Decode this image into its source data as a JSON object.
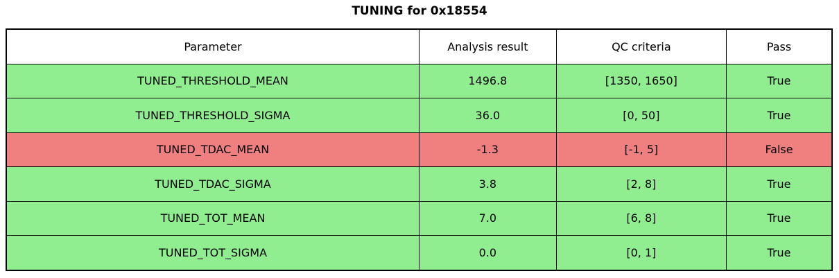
{
  "title": "TUNING for 0x18554",
  "colors": {
    "pass_row_bg": "#90EE90",
    "fail_row_bg": "#F08080",
    "header_bg": "#FFFFFF",
    "border": "#000000",
    "text": "#000000"
  },
  "table": {
    "headers": [
      "Parameter",
      "Analysis result",
      "QC criteria",
      "Pass"
    ],
    "rows": [
      {
        "parameter": "TUNED_THRESHOLD_MEAN",
        "result": "1496.8",
        "criteria": "[1350, 1650]",
        "pass": "True"
      },
      {
        "parameter": "TUNED_THRESHOLD_SIGMA",
        "result": "36.0",
        "criteria": "[0, 50]",
        "pass": "True"
      },
      {
        "parameter": "TUNED_TDAC_MEAN",
        "result": "-1.3",
        "criteria": "[-1, 5]",
        "pass": "False"
      },
      {
        "parameter": "TUNED_TDAC_SIGMA",
        "result": "3.8",
        "criteria": "[2, 8]",
        "pass": "True"
      },
      {
        "parameter": "TUNED_TOT_MEAN",
        "result": "7.0",
        "criteria": "[6, 8]",
        "pass": "True"
      },
      {
        "parameter": "TUNED_TOT_SIGMA",
        "result": "0.0",
        "criteria": "[0, 1]",
        "pass": "True"
      }
    ]
  },
  "chart_data": {
    "type": "table",
    "title": "TUNING for 0x18554",
    "columns": [
      "Parameter",
      "Analysis result",
      "QC criteria",
      "Pass"
    ],
    "rows": [
      [
        "TUNED_THRESHOLD_MEAN",
        "1496.8",
        "[1350, 1650]",
        "True"
      ],
      [
        "TUNED_THRESHOLD_SIGMA",
        "36.0",
        "[0, 50]",
        "True"
      ],
      [
        "TUNED_TDAC_MEAN",
        "-1.3",
        "[-1, 5]",
        "False"
      ],
      [
        "TUNED_TDAC_SIGMA",
        "3.8",
        "[2, 8]",
        "True"
      ],
      [
        "TUNED_TOT_MEAN",
        "7.0",
        "[6, 8]",
        "True"
      ],
      [
        "TUNED_TOT_SIGMA",
        "0.0",
        "[0, 1]",
        "True"
      ]
    ],
    "row_status_colors": {
      "True": "#90EE90",
      "False": "#F08080"
    },
    "legend_position": "none",
    "grid": true
  }
}
